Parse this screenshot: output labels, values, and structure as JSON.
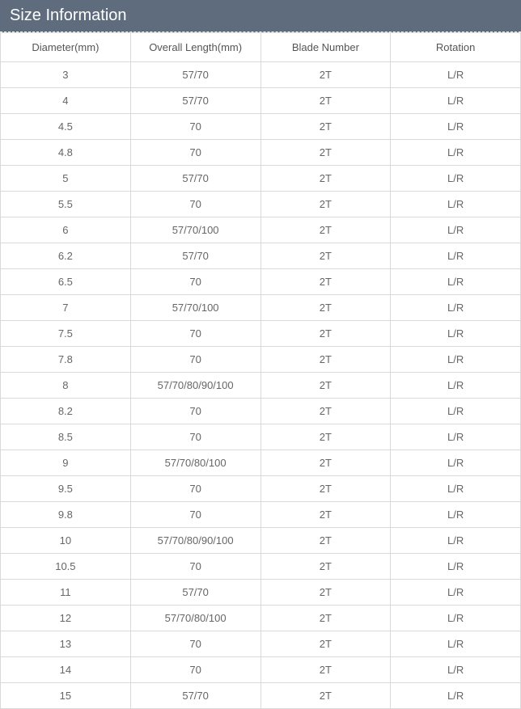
{
  "title": "Size Information",
  "table": {
    "columns": [
      "Diameter(mm)",
      "Overall Length(mm)",
      "Blade Number",
      "Rotation"
    ],
    "rows": [
      [
        "3",
        "57/70",
        "2T",
        "L/R"
      ],
      [
        "4",
        "57/70",
        "2T",
        "L/R"
      ],
      [
        "4.5",
        "70",
        "2T",
        "L/R"
      ],
      [
        "4.8",
        "70",
        "2T",
        "L/R"
      ],
      [
        "5",
        "57/70",
        "2T",
        "L/R"
      ],
      [
        "5.5",
        "70",
        "2T",
        "L/R"
      ],
      [
        "6",
        "57/70/100",
        "2T",
        "L/R"
      ],
      [
        "6.2",
        "57/70",
        "2T",
        "L/R"
      ],
      [
        "6.5",
        "70",
        "2T",
        "L/R"
      ],
      [
        "7",
        "57/70/100",
        "2T",
        "L/R"
      ],
      [
        "7.5",
        "70",
        "2T",
        "L/R"
      ],
      [
        "7.8",
        "70",
        "2T",
        "L/R"
      ],
      [
        "8",
        "57/70/80/90/100",
        "2T",
        "L/R"
      ],
      [
        "8.2",
        "70",
        "2T",
        "L/R"
      ],
      [
        "8.5",
        "70",
        "2T",
        "L/R"
      ],
      [
        "9",
        "57/70/80/100",
        "2T",
        "L/R"
      ],
      [
        "9.5",
        "70",
        "2T",
        "L/R"
      ],
      [
        "9.8",
        "70",
        "2T",
        "L/R"
      ],
      [
        "10",
        "57/70/80/90/100",
        "2T",
        "L/R"
      ],
      [
        "10.5",
        "70",
        "2T",
        "L/R"
      ],
      [
        "11",
        "57/70",
        "2T",
        "L/R"
      ],
      [
        "12",
        "57/70/80/100",
        "2T",
        "L/R"
      ],
      [
        "13",
        "70",
        "2T",
        "L/R"
      ],
      [
        "14",
        "70",
        "2T",
        "L/R"
      ],
      [
        "15",
        "57/70",
        "2T",
        "L/R"
      ]
    ],
    "header_bg": "#5e6c7e",
    "header_text_color": "#ffffff",
    "border_color": "#d9d9d9",
    "cell_text_color": "#666666",
    "font_size_header": 20,
    "font_size_cell": 13
  }
}
